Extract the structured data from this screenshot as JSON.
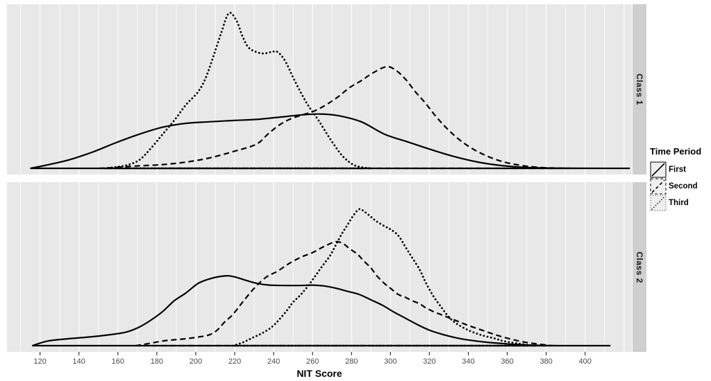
{
  "page": {
    "background": "#ffffff"
  },
  "legend": {
    "title": "Time Period",
    "items": [
      {
        "label": "First",
        "linetype": "solid"
      },
      {
        "label": "Second",
        "linetype": "dashed"
      },
      {
        "label": "Third",
        "linetype": "dotted"
      }
    ]
  },
  "colors": {
    "panel_bg": "#e8e8e8",
    "grid": "#f8f8f8",
    "strip_bg": "#cfcfcf",
    "curve": "#000000",
    "tick_text": "#4a4a4a",
    "key_bg": "#efefef"
  },
  "chart_data": {
    "type": "line",
    "title": "",
    "xlabel": "NIT Score",
    "ylabel": "",
    "y_units": "relative density (1.0 = tallest peak)",
    "x_axis_range": [
      103,
      424
    ],
    "x_ticks": [
      120,
      140,
      160,
      180,
      200,
      220,
      240,
      260,
      280,
      300,
      320,
      340,
      360,
      380,
      400
    ],
    "x_minor_grid_step": 10,
    "grid": "vertical white lines on gray panels, no horizontal gridlines, no y axis",
    "legend_position": "right",
    "facets": [
      {
        "label": "Class 1",
        "series": [
          {
            "name": "First",
            "linetype": "solid",
            "points": [
              [
                115,
                0
              ],
              [
                123,
                0.02
              ],
              [
                135,
                0.055
              ],
              [
                147,
                0.105
              ],
              [
                159,
                0.165
              ],
              [
                171,
                0.22
              ],
              [
                183,
                0.265
              ],
              [
                195,
                0.29
              ],
              [
                207,
                0.3
              ],
              [
                219,
                0.308
              ],
              [
                231,
                0.315
              ],
              [
                243,
                0.33
              ],
              [
                255,
                0.345
              ],
              [
                264,
                0.35
              ],
              [
                273,
                0.34
              ],
              [
                285,
                0.3
              ],
              [
                297,
                0.22
              ],
              [
                309,
                0.17
              ],
              [
                321,
                0.12
              ],
              [
                333,
                0.075
              ],
              [
                345,
                0.04
              ],
              [
                357,
                0.018
              ],
              [
                369,
                0.006
              ],
              [
                381,
                0.002
              ],
              [
                395,
                0.001
              ],
              [
                423,
                0
              ]
            ]
          },
          {
            "name": "Second",
            "linetype": "dashed",
            "points": [
              [
                150,
                0
              ],
              [
                157,
                0.004
              ],
              [
                163,
                0.01
              ],
              [
                171,
                0.016
              ],
              [
                183,
                0.024
              ],
              [
                195,
                0.04
              ],
              [
                207,
                0.067
              ],
              [
                219,
                0.107
              ],
              [
                231,
                0.155
              ],
              [
                237,
                0.22
              ],
              [
                243,
                0.28
              ],
              [
                249,
                0.32
              ],
              [
                255,
                0.345
              ],
              [
                261,
                0.37
              ],
              [
                267,
                0.41
              ],
              [
                273,
                0.46
              ],
              [
                279,
                0.52
              ],
              [
                285,
                0.565
              ],
              [
                291,
                0.615
              ],
              [
                298,
                0.655
              ],
              [
                303,
                0.63
              ],
              [
                308,
                0.57
              ],
              [
                313,
                0.49
              ],
              [
                318,
                0.42
              ],
              [
                323,
                0.34
              ],
              [
                328,
                0.27
              ],
              [
                333,
                0.21
              ],
              [
                338,
                0.16
              ],
              [
                343,
                0.12
              ],
              [
                348,
                0.088
              ],
              [
                353,
                0.062
              ],
              [
                358,
                0.042
              ],
              [
                363,
                0.028
              ],
              [
                368,
                0.017
              ],
              [
                373,
                0.01
              ],
              [
                379,
                0.004
              ],
              [
                392,
                0
              ]
            ]
          },
          {
            "name": "Third",
            "linetype": "dotted",
            "points": [
              [
                153,
                0
              ],
              [
                160,
                0.01
              ],
              [
                165,
                0.022
              ],
              [
                171,
                0.054
              ],
              [
                177,
                0.13
              ],
              [
                183,
                0.22
              ],
              [
                189,
                0.31
              ],
              [
                195,
                0.41
              ],
              [
                201,
                0.49
              ],
              [
                205,
                0.58
              ],
              [
                209,
                0.72
              ],
              [
                213,
                0.87
              ],
              [
                217,
                1.0
              ],
              [
                221,
                0.95
              ],
              [
                224,
                0.85
              ],
              [
                227,
                0.78
              ],
              [
                231,
                0.75
              ],
              [
                235,
                0.74
              ],
              [
                239,
                0.75
              ],
              [
                242,
                0.75
              ],
              [
                246,
                0.69
              ],
              [
                251,
                0.56
              ],
              [
                257,
                0.42
              ],
              [
                263,
                0.31
              ],
              [
                269,
                0.19
              ],
              [
                275,
                0.085
              ],
              [
                280,
                0.03
              ],
              [
                284,
                0.01
              ],
              [
                290,
                0
              ]
            ]
          }
        ]
      },
      {
        "label": "Class 2",
        "series": [
          {
            "name": "First",
            "linetype": "solid",
            "points": [
              [
                116,
                0
              ],
              [
                124,
                0.03
              ],
              [
                135,
                0.045
              ],
              [
                147,
                0.058
              ],
              [
                159,
                0.076
              ],
              [
                165,
                0.09
              ],
              [
                171,
                0.12
              ],
              [
                177,
                0.165
              ],
              [
                183,
                0.22
              ],
              [
                189,
                0.29
              ],
              [
                195,
                0.34
              ],
              [
                201,
                0.4
              ],
              [
                207,
                0.43
              ],
              [
                213,
                0.447
              ],
              [
                217,
                0.45
              ],
              [
                221,
                0.44
              ],
              [
                226,
                0.42
              ],
              [
                232,
                0.4
              ],
              [
                238,
                0.39
              ],
              [
                246,
                0.388
              ],
              [
                254,
                0.388
              ],
              [
                260,
                0.39
              ],
              [
                266,
                0.385
              ],
              [
                272,
                0.37
              ],
              [
                278,
                0.35
              ],
              [
                284,
                0.33
              ],
              [
                290,
                0.295
              ],
              [
                296,
                0.26
              ],
              [
                302,
                0.215
              ],
              [
                308,
                0.175
              ],
              [
                314,
                0.135
              ],
              [
                320,
                0.1
              ],
              [
                327,
                0.072
              ],
              [
                334,
                0.05
              ],
              [
                341,
                0.035
              ],
              [
                348,
                0.024
              ],
              [
                355,
                0.016
              ],
              [
                362,
                0.01
              ],
              [
                369,
                0.005
              ],
              [
                377,
                0.002
              ],
              [
                387,
                0
              ],
              [
                413,
                0
              ]
            ]
          },
          {
            "name": "Second",
            "linetype": "dashed",
            "points": [
              [
                169,
                0
              ],
              [
                175,
                0.012
              ],
              [
                183,
                0.03
              ],
              [
                189,
                0.038
              ],
              [
                195,
                0.045
              ],
              [
                201,
                0.055
              ],
              [
                207,
                0.07
              ],
              [
                211,
                0.1
              ],
              [
                215,
                0.155
              ],
              [
                219,
                0.2
              ],
              [
                224,
                0.28
              ],
              [
                230,
                0.37
              ],
              [
                236,
                0.44
              ],
              [
                242,
                0.48
              ],
              [
                248,
                0.53
              ],
              [
                254,
                0.57
              ],
              [
                260,
                0.6
              ],
              [
                266,
                0.64
              ],
              [
                272,
                0.67
              ],
              [
                276,
                0.655
              ],
              [
                279,
                0.625
              ],
              [
                283,
                0.59
              ],
              [
                286,
                0.55
              ],
              [
                290,
                0.5
              ],
              [
                293,
                0.45
              ],
              [
                297,
                0.4
              ],
              [
                300,
                0.37
              ],
              [
                304,
                0.33
              ],
              [
                308,
                0.31
              ],
              [
                311,
                0.29
              ],
              [
                315,
                0.27
              ],
              [
                318,
                0.245
              ],
              [
                322,
                0.22
              ],
              [
                326,
                0.2
              ],
              [
                330,
                0.18
              ],
              [
                334,
                0.16
              ],
              [
                340,
                0.13
              ],
              [
                347,
                0.1
              ],
              [
                354,
                0.07
              ],
              [
                361,
                0.045
              ],
              [
                368,
                0.025
              ],
              [
                375,
                0.012
              ],
              [
                383,
                0
              ]
            ]
          },
          {
            "name": "Third",
            "linetype": "dotted",
            "points": [
              [
                219,
                0
              ],
              [
                224,
                0.02
              ],
              [
                229,
                0.05
              ],
              [
                234,
                0.08
              ],
              [
                239,
                0.12
              ],
              [
                243,
                0.17
              ],
              [
                247,
                0.23
              ],
              [
                250,
                0.28
              ],
              [
                254,
                0.33
              ],
              [
                258,
                0.39
              ],
              [
                262,
                0.46
              ],
              [
                266,
                0.53
              ],
              [
                269,
                0.58
              ],
              [
                272,
                0.65
              ],
              [
                275,
                0.72
              ],
              [
                278,
                0.78
              ],
              [
                281,
                0.84
              ],
              [
                284,
                0.88
              ],
              [
                287,
                0.86
              ],
              [
                290,
                0.83
              ],
              [
                293,
                0.8
              ],
              [
                297,
                0.77
              ],
              [
                300,
                0.75
              ],
              [
                304,
                0.71
              ],
              [
                308,
                0.63
              ],
              [
                311,
                0.57
              ],
              [
                315,
                0.49
              ],
              [
                318,
                0.41
              ],
              [
                322,
                0.32
              ],
              [
                326,
                0.25
              ],
              [
                329,
                0.2
              ],
              [
                333,
                0.15
              ],
              [
                340,
                0.1
              ],
              [
                347,
                0.067
              ],
              [
                354,
                0.045
              ],
              [
                358,
                0.03
              ],
              [
                365,
                0.015
              ],
              [
                374,
                0
              ]
            ]
          }
        ]
      }
    ]
  }
}
